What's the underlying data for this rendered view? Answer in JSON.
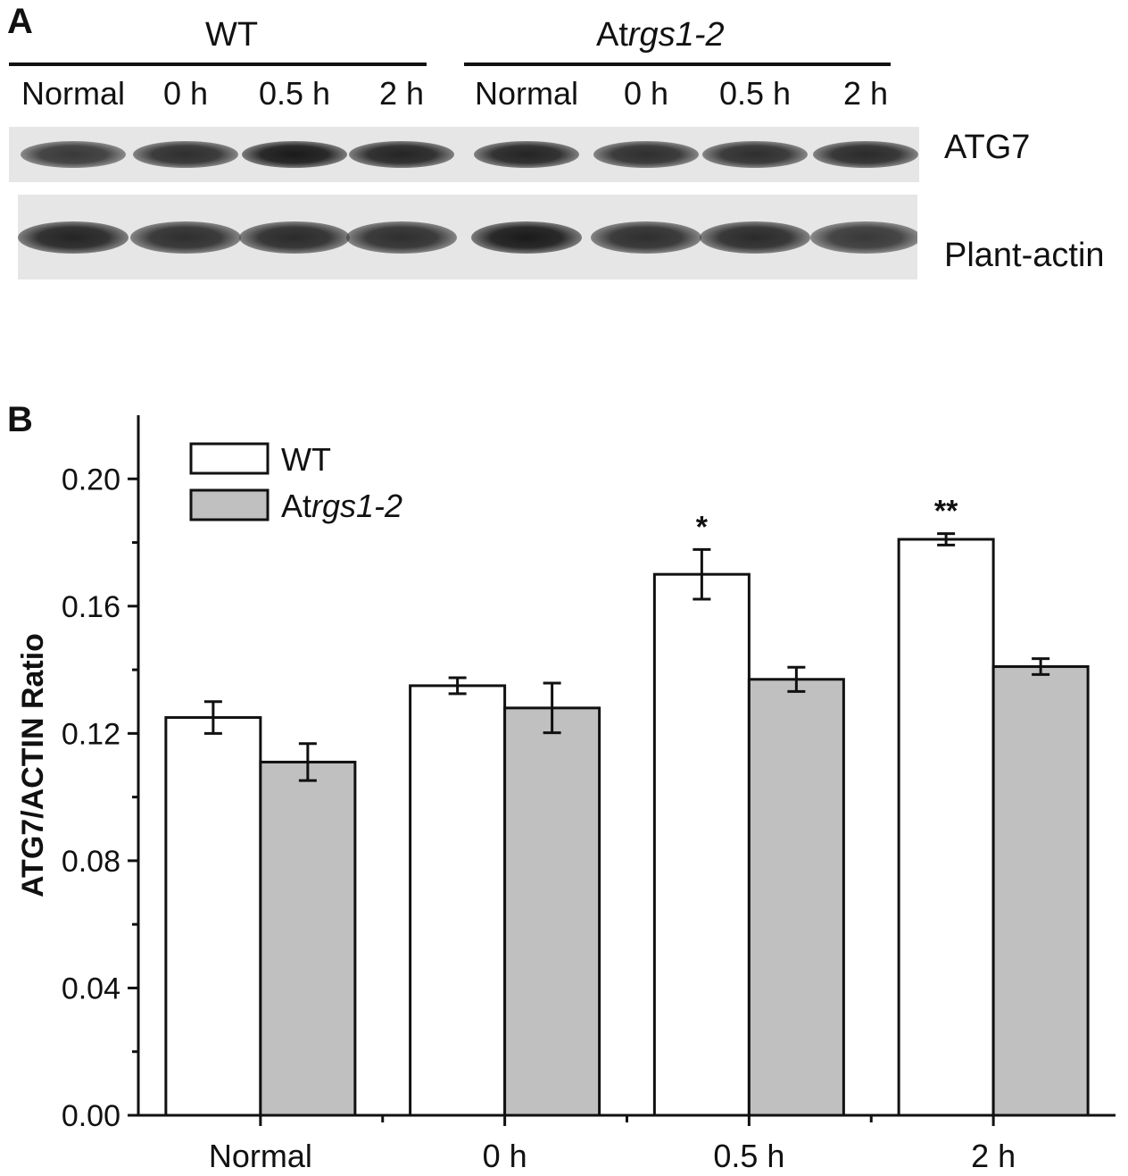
{
  "panel_a": {
    "letter": "A",
    "groups": [
      {
        "label": "WT",
        "italic_part": ""
      },
      {
        "label": "At",
        "italic_part": "rgs1-2"
      }
    ],
    "lanes": [
      "Normal",
      "0 h",
      "0.5 h",
      "2 h",
      "Normal",
      "0 h",
      "0.5 h",
      "2 h"
    ],
    "bands": [
      {
        "name": "ATG7",
        "intensities": [
          0.85,
          0.9,
          1.0,
          0.95,
          0.95,
          0.9,
          0.9,
          0.92
        ]
      },
      {
        "name": "Plant-actin",
        "intensities": [
          0.95,
          0.9,
          0.92,
          0.9,
          1.0,
          0.9,
          0.92,
          0.85
        ]
      }
    ]
  },
  "panel_b": {
    "letter": "B"
  },
  "colors": {
    "wt_fill": "#ffffff",
    "mutant_fill": "#c0c0c0",
    "stroke": "#111111"
  },
  "chart_data": {
    "type": "bar",
    "categories": [
      "Normal",
      "0 h",
      "0.5 h",
      "2 h"
    ],
    "series": [
      {
        "name": "WT",
        "values": [
          0.125,
          0.135,
          0.17,
          0.181
        ],
        "errors": [
          0.005,
          0.0025,
          0.0078,
          0.0018
        ],
        "marks": [
          "",
          "",
          "*",
          "**"
        ]
      },
      {
        "name": "Atrgs1-2",
        "values": [
          0.111,
          0.128,
          0.137,
          0.141
        ],
        "errors": [
          0.0058,
          0.0078,
          0.0038,
          0.0025
        ],
        "marks": [
          "",
          "",
          "",
          ""
        ]
      }
    ],
    "legend_names": [
      {
        "plain": "WT",
        "italic": ""
      },
      {
        "plain": "At",
        "italic": "rgs1-2"
      }
    ],
    "ylabel": "ATG7/ACTIN Ratio",
    "xlabel": "",
    "ylim": [
      0,
      0.22
    ],
    "yticks": [
      "0.00",
      "0.04",
      "0.08",
      "0.12",
      "0.16",
      "0.20"
    ],
    "ytick_values": [
      0,
      0.04,
      0.08,
      0.12,
      0.16,
      0.2
    ],
    "legend_position": "top-left",
    "grid": false
  }
}
